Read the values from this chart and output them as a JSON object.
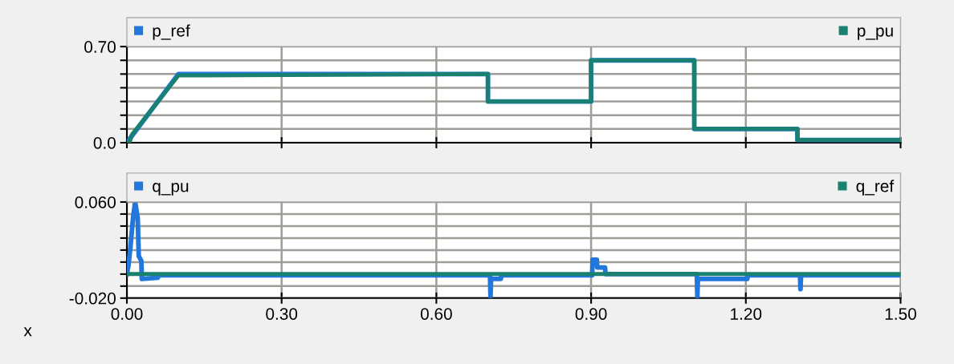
{
  "chart_data": [
    {
      "type": "line",
      "xlim": [
        0,
        1.5
      ],
      "ylim": [
        0,
        0.7
      ],
      "yticks": [
        {
          "value": 0,
          "label": "0.0"
        },
        {
          "value": 0.1,
          "label": null
        },
        {
          "value": 0.2,
          "label": null
        },
        {
          "value": 0.3,
          "label": null
        },
        {
          "value": 0.4,
          "label": null
        },
        {
          "value": 0.5,
          "label": null
        },
        {
          "value": 0.6,
          "label": null
        },
        {
          "value": 0.7,
          "label": "0.70"
        }
      ],
      "tick_labels": "y",
      "grid": true,
      "legend": "top",
      "line_style": "solid",
      "marker": "none",
      "series": [
        {
          "name": "p_ref",
          "color": "#2277dd",
          "x": [
            0,
            0.1,
            0.7,
            0.7,
            0.9,
            0.9,
            1.1,
            1.1,
            1.3,
            1.3,
            1.5
          ],
          "values": [
            0,
            0.5,
            0.5,
            0.3,
            0.3,
            0.6,
            0.6,
            0.1,
            0.1,
            0.02,
            0.02
          ]
        },
        {
          "name": "p_pu",
          "color": "#1a8070",
          "x": [
            0,
            0.005,
            0.01,
            0.1,
            0.7,
            0.7,
            0.9,
            0.9,
            1.1,
            1.1,
            1.3,
            1.3,
            1.5
          ],
          "values": [
            0,
            0,
            0.06,
            0.49,
            0.5,
            0.3,
            0.3,
            0.6,
            0.6,
            0.1,
            0.1,
            0.02,
            0.02
          ]
        }
      ]
    },
    {
      "type": "line",
      "xlim": [
        0,
        1.5
      ],
      "ylim": [
        -0.02,
        0.06
      ],
      "xlabel": "x",
      "xticks": [
        {
          "value": 0,
          "label": "0.00"
        },
        {
          "value": 0.3,
          "label": "0.30"
        },
        {
          "value": 0.6,
          "label": "0.60"
        },
        {
          "value": 0.9,
          "label": "0.90"
        },
        {
          "value": 1.2,
          "label": "1.20"
        },
        {
          "value": 1.5,
          "label": "1.50"
        }
      ],
      "yticks": [
        {
          "value": -0.02,
          "label": "-0.020"
        },
        {
          "value": -0.01,
          "label": null
        },
        {
          "value": 0,
          "label": null
        },
        {
          "value": 0.01,
          "label": null
        },
        {
          "value": 0.02,
          "label": null
        },
        {
          "value": 0.03,
          "label": null
        },
        {
          "value": 0.04,
          "label": null
        },
        {
          "value": 0.05,
          "label": null
        },
        {
          "value": 0.06,
          "label": "0.060"
        }
      ],
      "grid": true,
      "legend": "top",
      "line_style": "solid",
      "marker": "none",
      "series": [
        {
          "name": "q_pu",
          "color": "#2277dd",
          "x": [
            0,
            0.003,
            0.007,
            0.012,
            0.016,
            0.021,
            0.023,
            0.028,
            0.029,
            0.06,
            0.061,
            0.704,
            0.705,
            0.706,
            0.725,
            0.726,
            0.902,
            0.903,
            0.911,
            0.912,
            0.927,
            0.928,
            1.105,
            1.106,
            1.107,
            1.203,
            1.204,
            1.305,
            1.306,
            1.307,
            1.5
          ],
          "values": [
            0,
            0.007,
            0.023,
            0.047,
            0.06,
            0.047,
            0.015,
            0.011,
            -0.004,
            -0.003,
            -0.001,
            -0.001,
            -0.019,
            -0.004,
            -0.004,
            -0.001,
            -0.001,
            0.012,
            0.012,
            0.0055,
            0.0055,
            0,
            0,
            -0.019,
            -0.004,
            -0.004,
            -0.001,
            -0.001,
            -0.0125,
            -0.001,
            -0.001
          ]
        },
        {
          "name": "q_ref",
          "color": "#1a8070",
          "x": [
            0,
            1.5
          ],
          "values": [
            0,
            0
          ]
        }
      ]
    }
  ]
}
